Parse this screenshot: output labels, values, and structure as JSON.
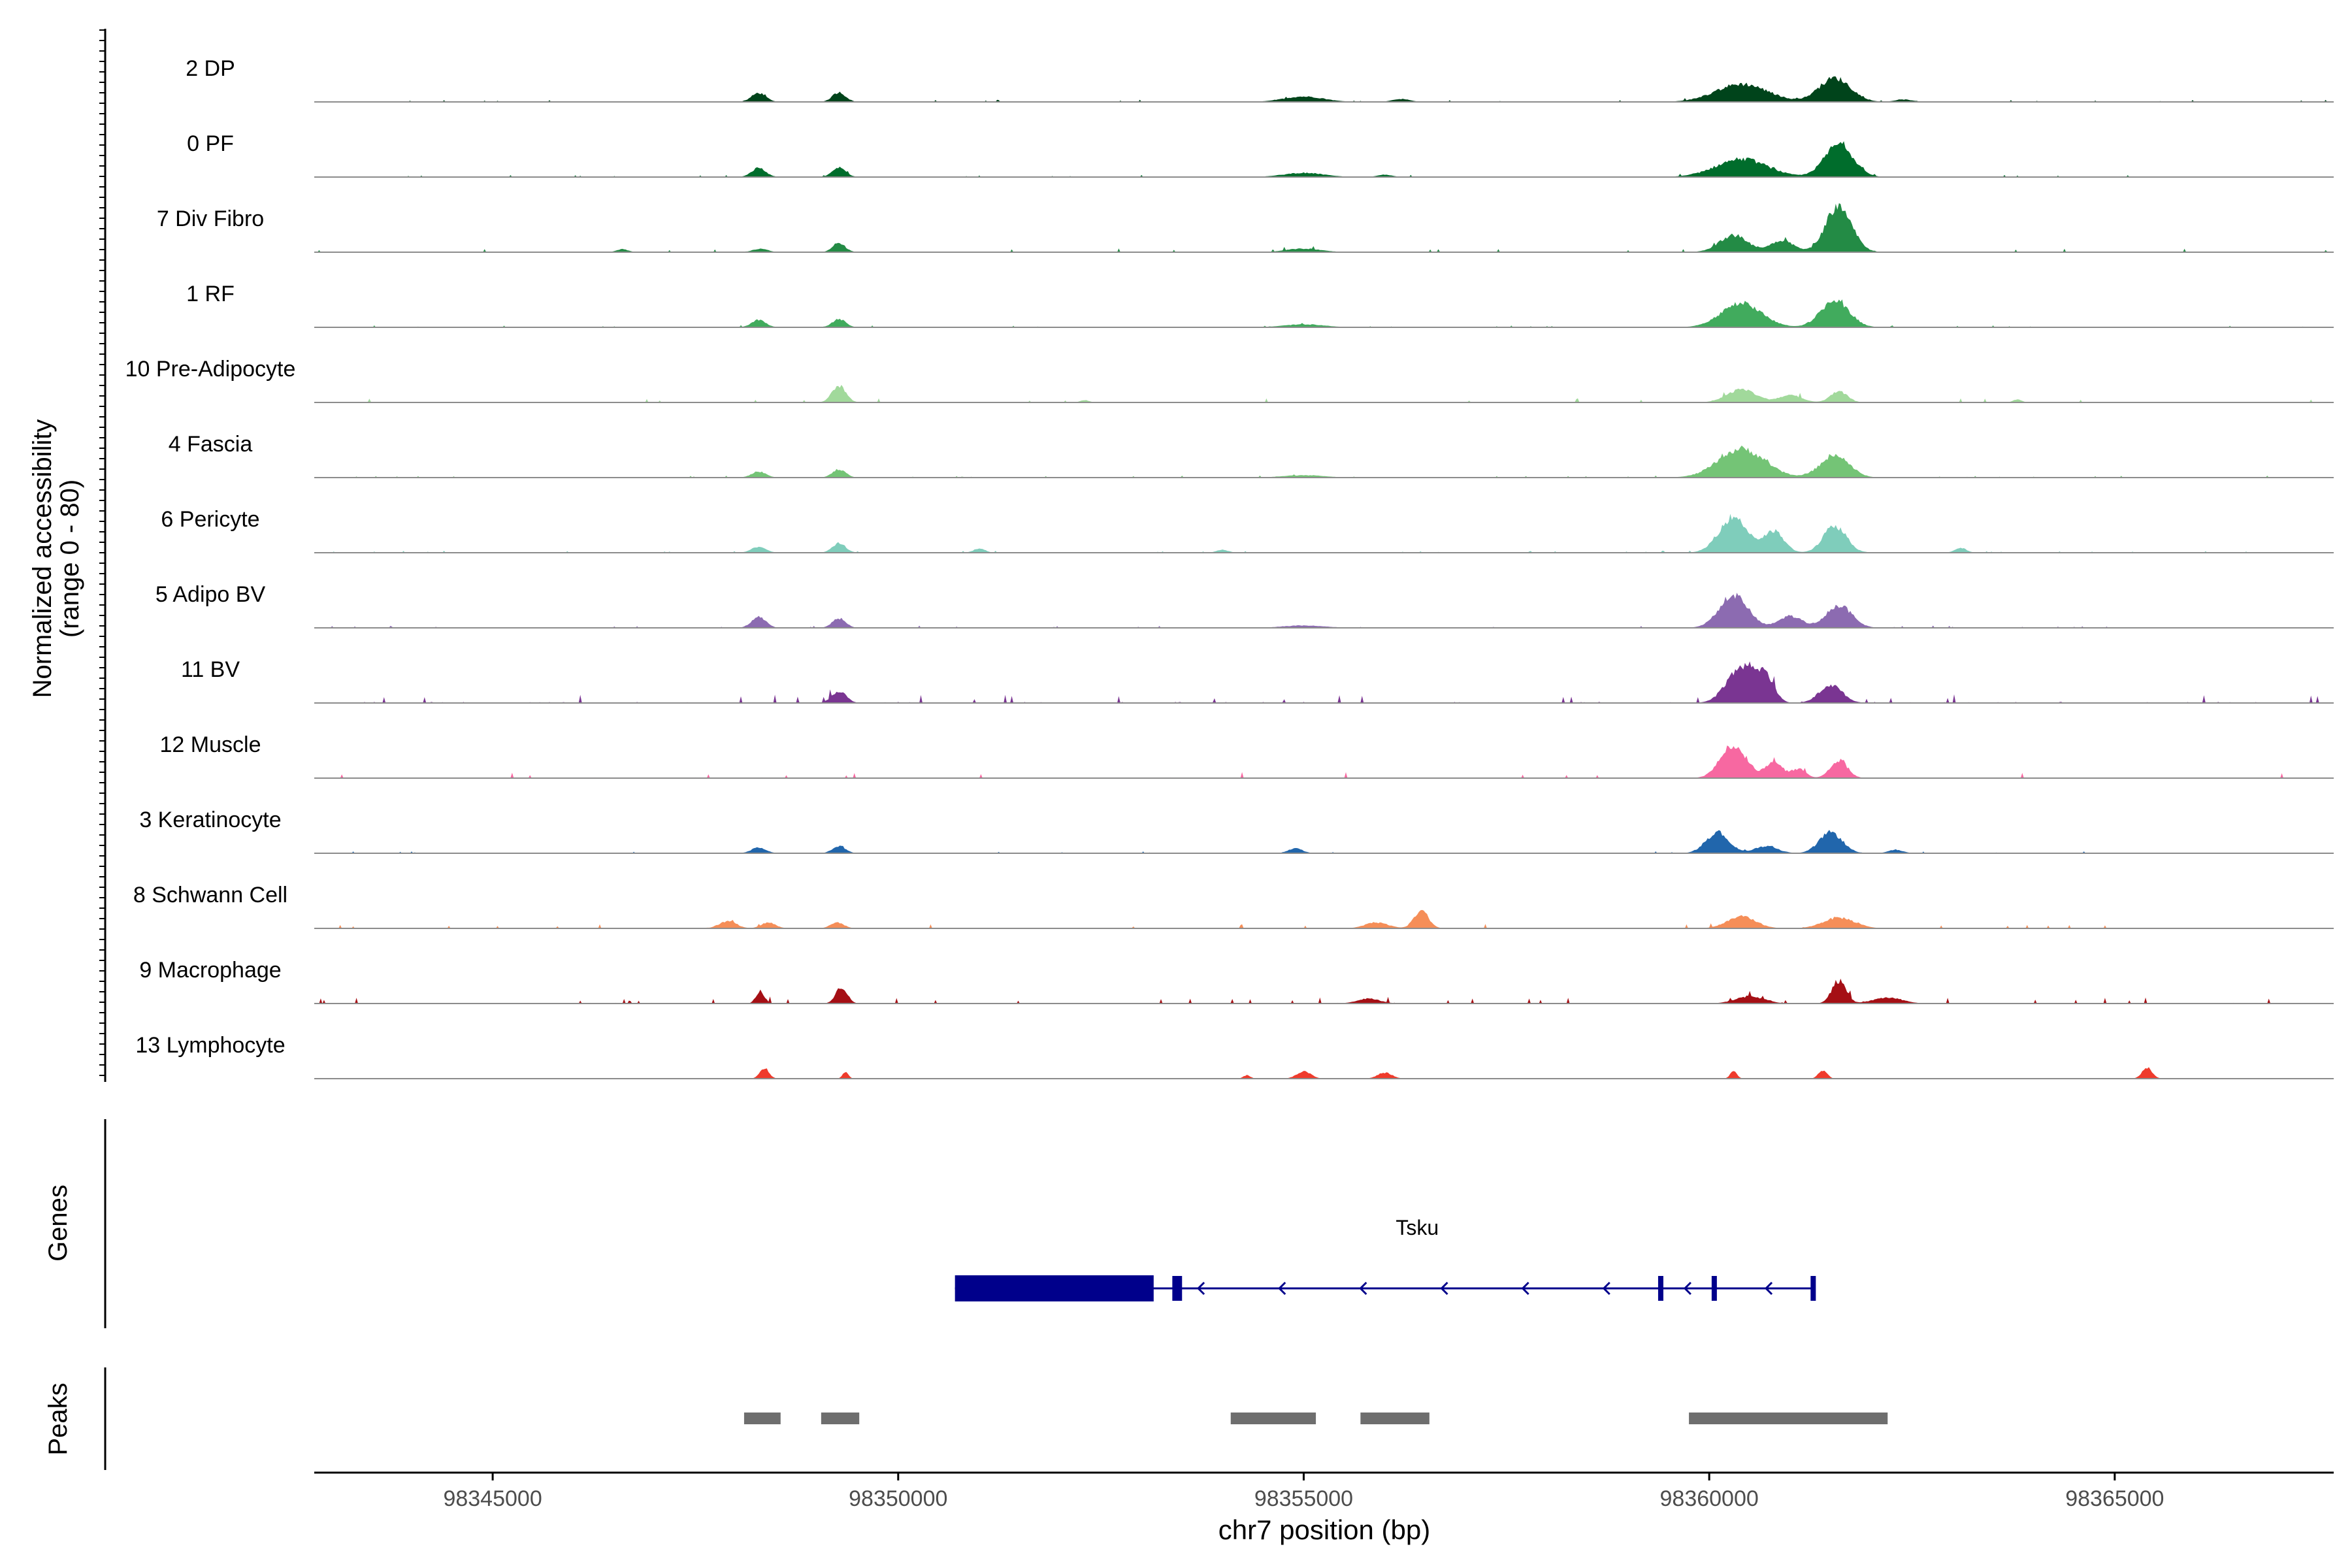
{
  "chart_data": {
    "type": "area",
    "title": "",
    "xlabel": "chr7 position (bp)",
    "ylabel_line1": "Normalized accessibility",
    "ylabel_line2": "(range 0 - 80)",
    "genes_label": "Genes",
    "peaks_label": "Peaks",
    "ylim": [
      0,
      80
    ],
    "xlim": [
      98342800,
      98367700
    ],
    "x_ticks": [
      98345000,
      98350000,
      98355000,
      98360000,
      98365000
    ],
    "x_tick_labels": [
      "98345000",
      "98350000",
      "98355000",
      "98360000",
      "98365000"
    ],
    "series": [
      {
        "name": "2 DP",
        "color": "#00441b",
        "peaks": [
          [
            98348280,
            15,
            250
          ],
          [
            98349270,
            16,
            230
          ],
          [
            98355000,
            9,
            700
          ],
          [
            98356200,
            5,
            300
          ],
          [
            98360400,
            30,
            900
          ],
          [
            98361550,
            40,
            550
          ],
          [
            98362400,
            4,
            300
          ]
        ],
        "noise": 1.5
      },
      {
        "name": "0 PF",
        "color": "#006d2c",
        "peaks": [
          [
            98348280,
            15,
            250
          ],
          [
            98349270,
            16,
            230
          ],
          [
            98355000,
            7,
            700
          ],
          [
            98356000,
            4,
            250
          ],
          [
            98360400,
            30,
            900
          ],
          [
            98361600,
            55,
            500
          ]
        ],
        "noise": 1.5
      },
      {
        "name": "7 Div Fibro",
        "color": "#238b45",
        "peaks": [
          [
            98346600,
            5,
            200
          ],
          [
            98348300,
            6,
            250
          ],
          [
            98349270,
            15,
            220
          ],
          [
            98355000,
            6,
            600
          ],
          [
            98360300,
            28,
            500
          ],
          [
            98360900,
            20,
            400
          ],
          [
            98361600,
            80,
            450
          ]
        ],
        "noise": 2.5
      },
      {
        "name": "1 RF",
        "color": "#41ab5d",
        "peaks": [
          [
            98348280,
            12,
            250
          ],
          [
            98349270,
            14,
            230
          ],
          [
            98355000,
            5,
            700
          ],
          [
            98360400,
            40,
            700
          ],
          [
            98361550,
            45,
            500
          ]
        ],
        "noise": 1.3
      },
      {
        "name": "10 Pre-Adipocyte",
        "color": "#a1d99b",
        "peaks": [
          [
            98349270,
            28,
            240
          ],
          [
            98352300,
            4,
            150
          ],
          [
            98360400,
            22,
            500
          ],
          [
            98361000,
            12,
            400
          ],
          [
            98361600,
            18,
            300
          ],
          [
            98363800,
            5,
            150
          ]
        ],
        "noise": 3
      },
      {
        "name": "4 Fascia",
        "color": "#74c476",
        "peaks": [
          [
            98348280,
            10,
            250
          ],
          [
            98349270,
            14,
            230
          ],
          [
            98355000,
            4,
            700
          ],
          [
            98360400,
            48,
            800
          ],
          [
            98361550,
            38,
            500
          ]
        ],
        "noise": 1.3
      },
      {
        "name": "6 Pericyte",
        "color": "#7fcdbb",
        "peaks": [
          [
            98348280,
            10,
            250
          ],
          [
            98349270,
            16,
            230
          ],
          [
            98351000,
            7,
            200
          ],
          [
            98354000,
            5,
            200
          ],
          [
            98360300,
            60,
            500
          ],
          [
            98360800,
            35,
            350
          ],
          [
            98361550,
            45,
            400
          ],
          [
            98363100,
            8,
            200
          ]
        ],
        "noise": 1.3
      },
      {
        "name": "5 Adipo BV",
        "color": "#8c6bb1",
        "peaks": [
          [
            98348280,
            18,
            250
          ],
          [
            98349270,
            16,
            230
          ],
          [
            98355000,
            4,
            700
          ],
          [
            98360300,
            55,
            500
          ],
          [
            98361000,
            20,
            400
          ],
          [
            98361600,
            38,
            450
          ]
        ],
        "noise": 1.5
      },
      {
        "name": "11 BV",
        "color": "#7a3592",
        "peaks": [
          [
            98349270,
            20,
            250
          ],
          [
            98360400,
            62,
            500
          ],
          [
            98360700,
            35,
            300
          ],
          [
            98361500,
            30,
            400
          ]
        ],
        "noise": 6
      },
      {
        "name": "12 Muscle",
        "color": "#f768a1",
        "peaks": [
          [
            98360300,
            55,
            450
          ],
          [
            98360800,
            25,
            300
          ],
          [
            98361100,
            15,
            250
          ],
          [
            98361600,
            30,
            300
          ]
        ],
        "noise": 4
      },
      {
        "name": "3 Keratinocyte",
        "color": "#2166ac",
        "peaks": [
          [
            98348280,
            10,
            250
          ],
          [
            98349270,
            12,
            230
          ],
          [
            98354900,
            8,
            250
          ],
          [
            98360100,
            35,
            400
          ],
          [
            98360700,
            12,
            400
          ],
          [
            98361500,
            35,
            400
          ],
          [
            98362300,
            6,
            250
          ]
        ],
        "noise": 1.4
      },
      {
        "name": "8 Schwann Cell",
        "color": "#f58e58",
        "peaks": [
          [
            98347900,
            12,
            300
          ],
          [
            98348400,
            10,
            250
          ],
          [
            98349250,
            10,
            230
          ],
          [
            98355900,
            10,
            400
          ],
          [
            98356450,
            30,
            250
          ],
          [
            98360400,
            20,
            500
          ],
          [
            98361600,
            18,
            550
          ]
        ],
        "noise": 3
      },
      {
        "name": "9 Macrophage",
        "color": "#a50f15",
        "peaks": [
          [
            98348300,
            20,
            150
          ],
          [
            98349300,
            28,
            200
          ],
          [
            98355800,
            8,
            400
          ],
          [
            98360500,
            12,
            500
          ],
          [
            98361600,
            38,
            250
          ],
          [
            98362200,
            10,
            500
          ]
        ],
        "noise": 4
      },
      {
        "name": "13 Lymphocyte",
        "color": "#ef3b2c",
        "peaks": [
          [
            98348350,
            18,
            160
          ],
          [
            98349350,
            12,
            100
          ],
          [
            98354300,
            6,
            120
          ],
          [
            98355000,
            12,
            250
          ],
          [
            98356000,
            10,
            250
          ],
          [
            98360300,
            12,
            120
          ],
          [
            98361400,
            14,
            150
          ],
          [
            98365400,
            18,
            180
          ]
        ],
        "noise": 0
      }
    ],
    "gene": {
      "name": "Tsku",
      "color": "#00008b",
      "start": 98350700,
      "end": 98361300,
      "strand": "-",
      "exons": [
        [
          98350700,
          98353150
        ],
        [
          98353380,
          98353500
        ],
        [
          98359370,
          98359430
        ],
        [
          98360030,
          98360070
        ],
        [
          98361250,
          98361300
        ]
      ]
    },
    "peaks_track": {
      "color": "#6e6e6e",
      "intervals": [
        [
          98348100,
          98348550
        ],
        [
          98349050,
          98349520
        ],
        [
          98354100,
          98355150
        ],
        [
          98355700,
          98356550
        ],
        [
          98359750,
          98362200
        ]
      ]
    }
  }
}
